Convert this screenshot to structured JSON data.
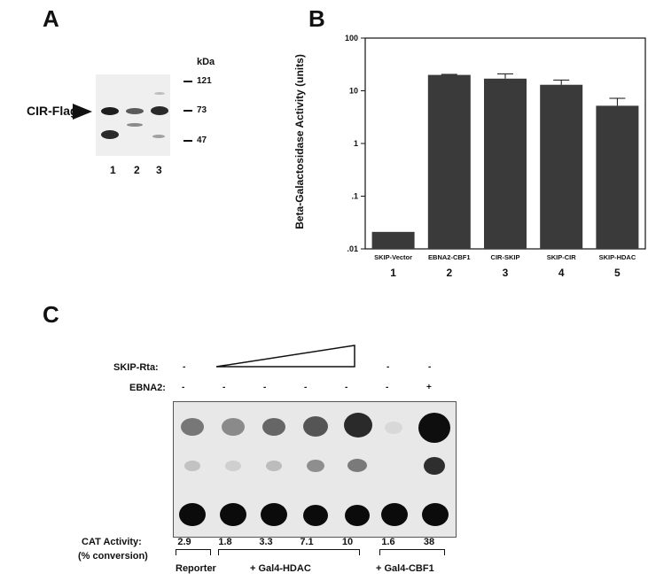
{
  "panel_a": {
    "letter": "A",
    "kda_label": "kDa",
    "band_label": "CIR-Flag",
    "markers": [
      "121",
      "73",
      "47"
    ],
    "lanes": [
      "1",
      "2",
      "3"
    ]
  },
  "panel_b": {
    "letter": "B"
  },
  "chart_data": {
    "type": "bar",
    "ylabel": "Beta-Galactosidase Activity (units)",
    "yscale": "log",
    "ylim": [
      0.01,
      100
    ],
    "yticks": [
      "100",
      "10",
      "1",
      ".1",
      ".01"
    ],
    "categories": [
      "SKIP-Vector",
      "EBNA2-CBF1",
      "CIR-SKIP",
      "SKIP-CIR",
      "SKIP-HDAC"
    ],
    "lane_numbers": [
      "1",
      "2",
      "3",
      "4",
      "5"
    ],
    "values": [
      0.021,
      20,
      17,
      13,
      5.2
    ],
    "error_upper": [
      0.021,
      20.5,
      21,
      16,
      7.2
    ],
    "bar_color": "#3a3a3a"
  },
  "panel_c": {
    "letter": "C",
    "skip_rta_label": "SKIP-Rta:",
    "ebna2_label": "EBNA2:",
    "skip_rta_signs": [
      "-",
      "-",
      "-"
    ],
    "ebna2_signs": [
      "-",
      "-",
      "-",
      "-",
      "-",
      "-",
      "+"
    ],
    "cat_label_1": "CAT Activity:",
    "cat_label_2": "(% conversion)",
    "cat_values": [
      "2.9",
      "1.8",
      "3.3",
      "7.1",
      "10",
      "1.6",
      "38"
    ],
    "group_reporter": "Reporter",
    "group_hdac": "+ Gal4-HDAC",
    "group_cbf1": "+ Gal4-CBF1"
  }
}
